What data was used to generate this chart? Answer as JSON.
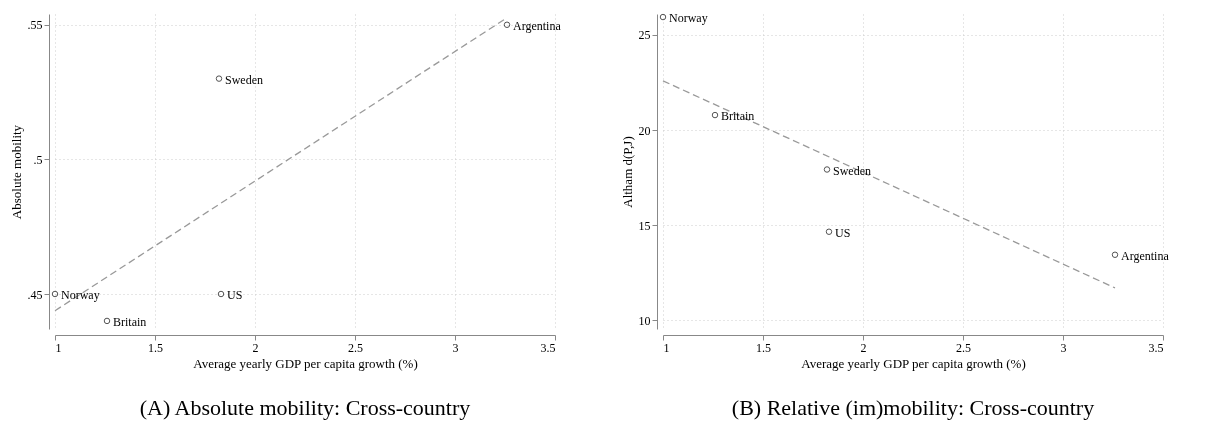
{
  "chart_data": [
    {
      "type": "scatter",
      "title": "(A) Absolute mobility: Cross-country",
      "xlabel": "Average yearly GDP per capita growth (%)",
      "ylabel": "Absolute mobility",
      "xlim": [
        1,
        3.5
      ],
      "xticks": [
        1,
        1.5,
        2,
        2.5,
        3,
        3.5
      ],
      "ylim": [
        0.437,
        0.554
      ],
      "yticks": [
        {
          "value": 0.45,
          "label": ".45"
        },
        {
          "value": 0.5,
          "label": ".5"
        },
        {
          "value": 0.55,
          "label": ".55"
        }
      ],
      "grid": true,
      "marker": "circle",
      "series": [
        {
          "color": "#555555",
          "x": [
            1.0,
            1.26,
            1.82,
            1.83,
            3.26
          ],
          "values": [
            0.45,
            0.44,
            0.53,
            0.45,
            0.55
          ]
        },
        {
          "type": "line",
          "marker": "none",
          "color": "#999999",
          "line_style": "dashed",
          "x": [
            1.0,
            3.26
          ],
          "values": [
            0.4438,
            0.5526
          ]
        }
      ],
      "annotations": [
        {
          "text": "Norway",
          "x": 1.0,
          "y": 0.45
        },
        {
          "text": "Britain",
          "x": 1.26,
          "y": 0.44
        },
        {
          "text": "Sweden",
          "x": 1.82,
          "y": 0.53
        },
        {
          "text": "US",
          "x": 1.83,
          "y": 0.45
        },
        {
          "text": "Argentina",
          "x": 3.26,
          "y": 0.55
        }
      ]
    },
    {
      "type": "scatter",
      "title": "(B) Relative (im)mobility: Cross-country",
      "xlabel": "Average yearly GDP per capita growth (%)",
      "ylabel": "Altham d(P,J)",
      "xlim": [
        1,
        3.5
      ],
      "xticks": [
        1,
        1.5,
        2,
        2.5,
        3,
        3.5
      ],
      "ylim": [
        9.55,
        26.1
      ],
      "yticks": [
        10,
        15,
        20,
        25
      ],
      "grid": true,
      "marker": "circle",
      "series": [
        {
          "color": "#555555",
          "x": [
            1.0,
            1.26,
            1.82,
            1.83,
            3.26
          ],
          "values": [
            25.94,
            20.79,
            17.93,
            14.66,
            13.45
          ]
        },
        {
          "type": "line",
          "marker": "none",
          "color": "#999999",
          "line_style": "dashed",
          "x": [
            1.0,
            3.26
          ],
          "values": [
            22.59,
            11.71
          ]
        }
      ],
      "annotations": [
        {
          "text": "Norway",
          "x": 1.0,
          "y": 25.94
        },
        {
          "text": "Britain",
          "x": 1.26,
          "y": 20.79
        },
        {
          "text": "Sweden",
          "x": 1.82,
          "y": 17.93
        },
        {
          "text": "US",
          "x": 1.83,
          "y": 14.66
        },
        {
          "text": "Argentina",
          "x": 3.26,
          "y": 13.45
        }
      ]
    }
  ]
}
